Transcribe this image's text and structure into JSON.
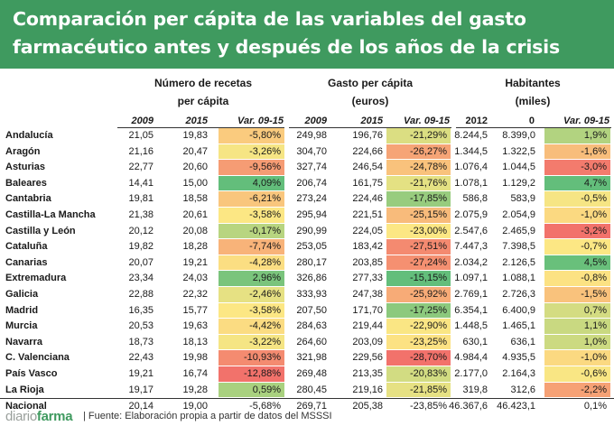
{
  "title": "Comparación per cápita de las variables del gasto farmacéutico antes y después de los años de la crisis",
  "groups": {
    "recetas": {
      "line1": "Número de recetas",
      "line2": "per cápita"
    },
    "gasto": {
      "line1": "Gasto per cápita",
      "line2": "(euros)"
    },
    "habitantes": {
      "line1": "Habitantes",
      "line2": "(miles)"
    }
  },
  "subheaders": [
    "2009",
    "2015",
    "Var. 09-15",
    "2009",
    "2015",
    "Var. 09-15",
    "2012",
    "0",
    "Var. 09-15"
  ],
  "colors": {
    "header_bg": "#3f9a5f",
    "high_negative": "#f2726b",
    "mid": "#fce784",
    "positive": "#63be7b"
  },
  "rows": [
    {
      "name": "Andalucía",
      "r09": "21,05",
      "r15": "19,83",
      "rv": "-5,80%",
      "g09": "249,98",
      "g15": "196,76",
      "gv": "-21,29%",
      "h12": "8.244,5",
      "h0": "8.399,0",
      "hv": "1,9%"
    },
    {
      "name": "Aragón",
      "r09": "21,16",
      "r15": "20,47",
      "rv": "-3,26%",
      "g09": "304,70",
      "g15": "224,66",
      "gv": "-26,27%",
      "h12": "1.344,5",
      "h0": "1.322,5",
      "hv": "-1,6%"
    },
    {
      "name": "Asturias",
      "r09": "22,77",
      "r15": "20,60",
      "rv": "-9,56%",
      "g09": "327,74",
      "g15": "246,54",
      "gv": "-24,78%",
      "h12": "1.076,4",
      "h0": "1.044,5",
      "hv": "-3,0%"
    },
    {
      "name": "Baleares",
      "r09": "14,41",
      "r15": "15,00",
      "rv": "4,09%",
      "g09": "206,74",
      "g15": "161,75",
      "gv": "-21,76%",
      "h12": "1.078,1",
      "h0": "1.129,2",
      "hv": "4,7%"
    },
    {
      "name": "Cantabria",
      "r09": "19,81",
      "r15": "18,58",
      "rv": "-6,21%",
      "g09": "273,24",
      "g15": "224,46",
      "gv": "-17,85%",
      "h12": "586,8",
      "h0": "583,9",
      "hv": "-0,5%"
    },
    {
      "name": "Castilla-La Mancha",
      "r09": "21,38",
      "r15": "20,61",
      "rv": "-3,58%",
      "g09": "295,94",
      "g15": "221,51",
      "gv": "-25,15%",
      "h12": "2.075,9",
      "h0": "2.054,9",
      "hv": "-1,0%"
    },
    {
      "name": "Castilla y León",
      "r09": "20,12",
      "r15": "20,08",
      "rv": "-0,17%",
      "g09": "290,99",
      "g15": "224,05",
      "gv": "-23,00%",
      "h12": "2.547,6",
      "h0": "2.465,9",
      "hv": "-3,2%"
    },
    {
      "name": "Cataluña",
      "r09": "19,82",
      "r15": "18,28",
      "rv": "-7,74%",
      "g09": "253,05",
      "g15": "183,42",
      "gv": "-27,51%",
      "h12": "7.447,3",
      "h0": "7.398,5",
      "hv": "-0,7%"
    },
    {
      "name": "Canarias",
      "r09": "20,07",
      "r15": "19,21",
      "rv": "-4,28%",
      "g09": "280,17",
      "g15": "203,85",
      "gv": "-27,24%",
      "h12": "2.034,2",
      "h0": "2.126,5",
      "hv": "4,5%"
    },
    {
      "name": "Extremadura",
      "r09": "23,34",
      "r15": "24,03",
      "rv": "2,96%",
      "g09": "326,86",
      "g15": "277,33",
      "gv": "-15,15%",
      "h12": "1.097,1",
      "h0": "1.088,1",
      "hv": "-0,8%"
    },
    {
      "name": "Galicia",
      "r09": "22,88",
      "r15": "22,32",
      "rv": "-2,46%",
      "g09": "333,93",
      "g15": "247,38",
      "gv": "-25,92%",
      "h12": "2.769,1",
      "h0": "2.726,3",
      "hv": "-1,5%"
    },
    {
      "name": "Madrid",
      "r09": "16,35",
      "r15": "15,77",
      "rv": "-3,58%",
      "g09": "207,50",
      "g15": "171,70",
      "gv": "-17,25%",
      "h12": "6.354,1",
      "h0": "6.400,9",
      "hv": "0,7%"
    },
    {
      "name": "Murcia",
      "r09": "20,53",
      "r15": "19,63",
      "rv": "-4,42%",
      "g09": "284,63",
      "g15": "219,44",
      "gv": "-22,90%",
      "h12": "1.448,5",
      "h0": "1.465,1",
      "hv": "1,1%"
    },
    {
      "name": "Navarra",
      "r09": "18,73",
      "r15": "18,13",
      "rv": "-3,22%",
      "g09": "264,60",
      "g15": "203,09",
      "gv": "-23,25%",
      "h12": "630,1",
      "h0": "636,1",
      "hv": "1,0%"
    },
    {
      "name": "C. Valenciana",
      "r09": "22,43",
      "r15": "19,98",
      "rv": "-10,93%",
      "g09": "321,98",
      "g15": "229,56",
      "gv": "-28,70%",
      "h12": "4.984,4",
      "h0": "4.935,5",
      "hv": "-1,0%"
    },
    {
      "name": "País Vasco",
      "r09": "19,21",
      "r15": "16,74",
      "rv": "-12,88%",
      "g09": "269,48",
      "g15": "213,35",
      "gv": "-20,83%",
      "h12": "2.177,0",
      "h0": "2.164,3",
      "hv": "-0,6%"
    },
    {
      "name": "La Rioja",
      "r09": "19,17",
      "r15": "19,28",
      "rv": "0,59%",
      "g09": "280,45",
      "g15": "219,16",
      "gv": "-21,85%",
      "h12": "319,8",
      "h0": "312,6",
      "hv": "-2,2%"
    }
  ],
  "total": {
    "name": "Nacional",
    "r09": "20,14",
    "r15": "19,00",
    "rv": "-5,68%",
    "g09": "269,71",
    "g15": "205,38",
    "gv": "-23,85%",
    "h12": "46.367,6",
    "h0": "46.423,1",
    "hv": "0,1%"
  },
  "footer": {
    "logo_light": "diario",
    "logo_bold": "farma",
    "source": "| Fuente: Elaboración propia a partir de datos del MSSSI"
  }
}
